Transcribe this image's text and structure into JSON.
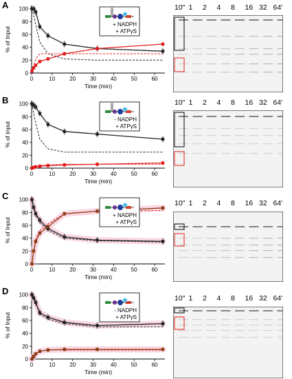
{
  "lane_labels": [
    "10\"",
    "1",
    "2",
    "4",
    "8",
    "16",
    "32",
    "64'"
  ],
  "axes": {
    "xlabel": "Time (min)",
    "ylabel": "% of Input",
    "xticks": [
      0,
      10,
      20,
      30,
      40,
      50,
      60
    ],
    "yticks": [
      0,
      20,
      40,
      60,
      80,
      100
    ],
    "xlim": [
      0,
      65
    ],
    "ylim": [
      0,
      105
    ]
  },
  "colors": {
    "depleted": "#222222",
    "product": "#e31b1b",
    "product_dark": "#8b3a10",
    "fit_band": "#f7c8d8"
  },
  "chart_data": [
    {
      "type": "scatter",
      "panel": "A",
      "legend": {
        "line1": "+ NADPH",
        "line2": "+ ATPγS"
      },
      "x": [
        0.17,
        1,
        2,
        4,
        8,
        16,
        32,
        64
      ],
      "series": [
        {
          "values": [
            100,
            100,
            95,
            72,
            58,
            45,
            38,
            34
          ],
          "color": "#222222"
        },
        {
          "values": [
            3,
            8,
            12,
            18,
            22,
            30,
            38,
            45
          ],
          "color": "#e31b1b"
        }
      ],
      "dashed": [
        {
          "values": [
            100,
            90,
            75,
            48,
            30,
            22,
            20,
            20
          ],
          "color": "#222222"
        },
        {
          "values": [
            3,
            12,
            22,
            30,
            30,
            30,
            30,
            30
          ],
          "color": "#e31b1b"
        }
      ]
    },
    {
      "type": "scatter",
      "panel": "B",
      "legend": {
        "line1": "- NADPH",
        "line2": "+ ATPγS"
      },
      "x": [
        0.17,
        1,
        2,
        4,
        8,
        16,
        32,
        64
      ],
      "series": [
        {
          "values": [
            100,
            98,
            95,
            85,
            68,
            57,
            53,
            45
          ],
          "color": "#222222"
        },
        {
          "values": [
            0,
            1,
            2,
            3,
            4,
            5,
            6,
            8
          ],
          "color": "#e31b1b"
        }
      ],
      "dashed": [
        {
          "values": [
            100,
            85,
            70,
            45,
            30,
            25,
            25,
            25
          ],
          "color": "#222222"
        },
        {
          "values": [
            0,
            2,
            3,
            4,
            5,
            6,
            6,
            6
          ],
          "color": "#e31b1b"
        }
      ]
    },
    {
      "type": "scatter",
      "panel": "C",
      "legend": {
        "line1": "+ NADPH",
        "line2": "+ ATPγS"
      },
      "x": [
        0.17,
        1,
        2,
        4,
        8,
        16,
        32,
        64
      ],
      "series": [
        {
          "values": [
            100,
            88,
            78,
            68,
            55,
            42,
            37,
            35
          ],
          "color": "#222222"
        },
        {
          "values": [
            0,
            20,
            35,
            48,
            58,
            78,
            82,
            87
          ],
          "color": "#8b3a10"
        }
      ],
      "dashed": [
        {
          "values": [
            100,
            88,
            76,
            65,
            52,
            40,
            36,
            34
          ],
          "color": "#222222"
        },
        {
          "values": [
            0,
            22,
            38,
            52,
            62,
            78,
            82,
            83
          ],
          "color": "#e31b1b"
        }
      ]
    },
    {
      "type": "scatter",
      "panel": "D",
      "legend": {
        "line1": "- NADPH",
        "line2": "+ ATPγS"
      },
      "x": [
        0.17,
        1,
        2,
        4,
        8,
        16,
        32,
        64
      ],
      "series": [
        {
          "values": [
            100,
            95,
            88,
            72,
            65,
            57,
            52,
            55
          ],
          "color": "#222222"
        },
        {
          "values": [
            0,
            4,
            8,
            12,
            14,
            15,
            15,
            15
          ],
          "color": "#8b3a10"
        }
      ],
      "dashed": [
        {
          "values": [
            100,
            94,
            86,
            70,
            62,
            55,
            50,
            50
          ],
          "color": "#222222"
        },
        {
          "values": [
            0,
            5,
            9,
            12,
            14,
            14,
            14,
            14
          ],
          "color": "#e31b1b"
        }
      ]
    }
  ]
}
